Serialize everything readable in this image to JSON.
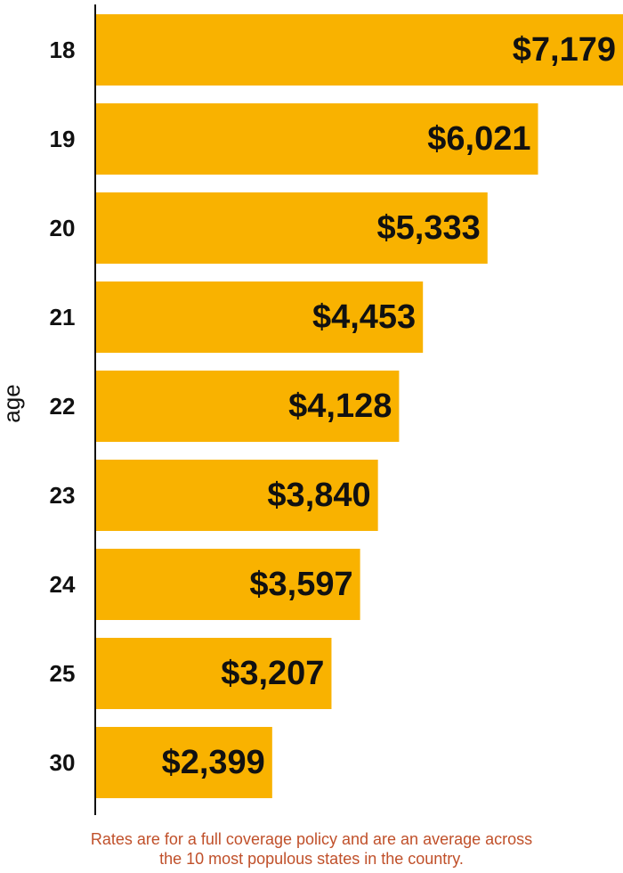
{
  "chart_data": {
    "type": "bar",
    "orientation": "horizontal",
    "categories": [
      "18",
      "19",
      "20",
      "21",
      "22",
      "23",
      "24",
      "25",
      "30"
    ],
    "values": [
      7179,
      6021,
      5333,
      4453,
      4128,
      3840,
      3597,
      3207,
      2399
    ],
    "value_labels": [
      "$7,179",
      "$6,021",
      "$5,333",
      "$4,453",
      "$4,128",
      "$3,840",
      "$3,597",
      "$3,207",
      "$2,399"
    ],
    "ylabel": "age",
    "xlim": [
      0,
      7179
    ],
    "grid": false,
    "legend": "none",
    "bar_color": "#f9b200"
  },
  "note": {
    "line1": "Rates are for a full coverage policy and are an average across",
    "line2": "the 10 most populous states in the country."
  },
  "colors": {
    "bar": "#f9b200",
    "text": "#111111",
    "note": "#c0502a",
    "axis": "#111111"
  }
}
